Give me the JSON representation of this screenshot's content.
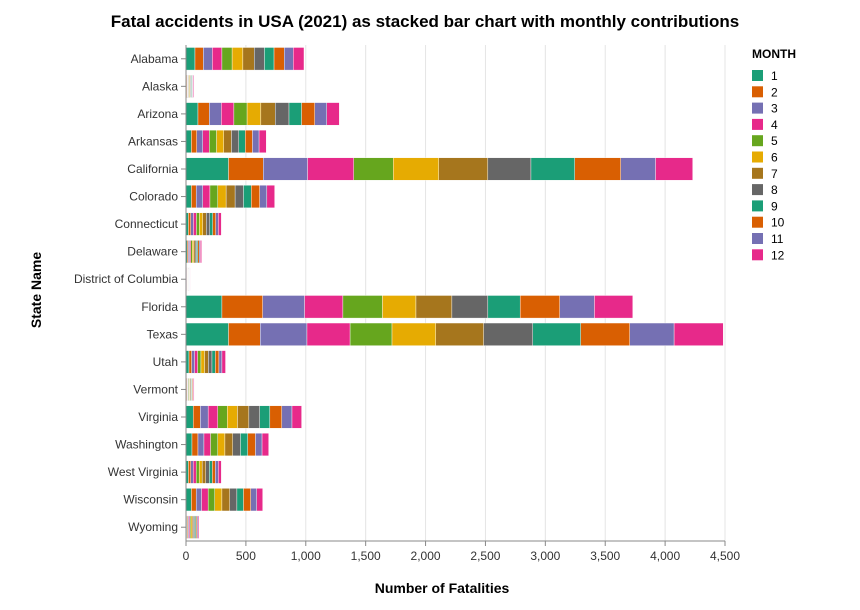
{
  "chart_data": {
    "type": "bar",
    "orientation": "horizontal",
    "stacked": true,
    "title": "Fatal accidents in USA (2021) as stacked bar chart with monthly  contributions",
    "xlabel": "Number of Fatalities",
    "ylabel": "State Name",
    "xlim": [
      0,
      4500
    ],
    "x_ticks": [
      0,
      500,
      1000,
      1500,
      2000,
      2500,
      3000,
      3500,
      4000,
      4500
    ],
    "x_tick_labels": [
      "0",
      "500",
      "1,000",
      "1,500",
      "2,000",
      "2,500",
      "3,000",
      "3,500",
      "4,000",
      "4,500"
    ],
    "grid": true,
    "legend": {
      "title": "MONTH",
      "position": "right",
      "entries": [
        "1",
        "2",
        "3",
        "4",
        "5",
        "6",
        "7",
        "8",
        "9",
        "10",
        "11",
        "12"
      ]
    },
    "colors": [
      "#1b9e77",
      "#d95f02",
      "#7570b3",
      "#e7298a",
      "#66a61e",
      "#e6ab02",
      "#a6761d",
      "#666666",
      "#1b9e77",
      "#d95f02",
      "#7570b3",
      "#e7298a"
    ],
    "categories": [
      "Alabama",
      "Alaska",
      "Arizona",
      "Arkansas",
      "California",
      "Colorado",
      "Connecticut",
      "Delaware",
      "District of Columbia",
      "Florida",
      "Texas",
      "Utah",
      "Vermont",
      "Virginia",
      "Washington",
      "West Virginia",
      "Wisconsin",
      "Wyoming"
    ],
    "series": [
      {
        "name": "1",
        "values": [
          75,
          5,
          100,
          45,
          355,
          45,
          20,
          10,
          2,
          300,
          355,
          25,
          5,
          60,
          50,
          20,
          45,
          8
        ]
      },
      {
        "name": "2",
        "values": [
          70,
          5,
          95,
          45,
          290,
          40,
          20,
          10,
          2,
          340,
          265,
          22,
          5,
          60,
          50,
          20,
          40,
          8
        ]
      },
      {
        "name": "3",
        "values": [
          75,
          5,
          100,
          50,
          370,
          55,
          22,
          10,
          3,
          350,
          390,
          25,
          5,
          65,
          50,
          20,
          45,
          8
        ]
      },
      {
        "name": "4",
        "values": [
          80,
          5,
          105,
          55,
          385,
          60,
          25,
          10,
          3,
          320,
          360,
          25,
          5,
          80,
          55,
          25,
          55,
          9
        ]
      },
      {
        "name": "5",
        "values": [
          85,
          5,
          110,
          60,
          330,
          65,
          25,
          12,
          3,
          330,
          350,
          28,
          6,
          80,
          60,
          25,
          55,
          9
        ]
      },
      {
        "name": "6",
        "values": [
          90,
          5,
          115,
          60,
          380,
          70,
          28,
          12,
          3,
          280,
          365,
          30,
          6,
          85,
          60,
          25,
          60,
          10
        ]
      },
      {
        "name": "7",
        "values": [
          95,
          6,
          120,
          65,
          410,
          75,
          30,
          12,
          3,
          300,
          400,
          32,
          6,
          95,
          65,
          30,
          65,
          10
        ]
      },
      {
        "name": "8",
        "values": [
          85,
          6,
          115,
          60,
          360,
          70,
          28,
          12,
          3,
          300,
          410,
          30,
          6,
          90,
          65,
          30,
          60,
          10
        ]
      },
      {
        "name": "9",
        "values": [
          80,
          6,
          105,
          55,
          365,
          65,
          25,
          10,
          3,
          270,
          400,
          28,
          6,
          85,
          60,
          25,
          55,
          9
        ]
      },
      {
        "name": "10",
        "values": [
          85,
          5,
          110,
          60,
          385,
          70,
          25,
          12,
          3,
          330,
          410,
          30,
          6,
          100,
          65,
          25,
          60,
          9
        ]
      },
      {
        "name": "11",
        "values": [
          75,
          5,
          100,
          55,
          290,
          60,
          22,
          10,
          3,
          290,
          370,
          25,
          5,
          85,
          55,
          25,
          50,
          8
        ]
      },
      {
        "name": "12",
        "values": [
          90,
          6,
          105,
          60,
          310,
          65,
          25,
          10,
          3,
          320,
          410,
          30,
          6,
          80,
          55,
          25,
          50,
          8
        ]
      }
    ]
  }
}
